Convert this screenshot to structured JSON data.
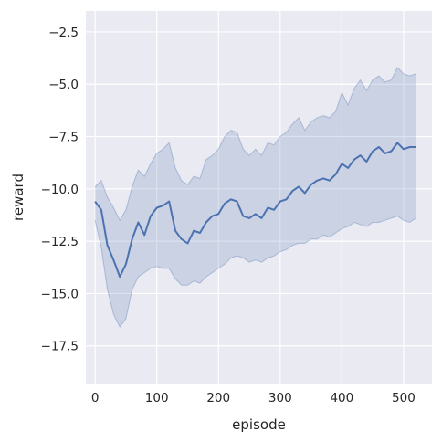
{
  "chart_data": {
    "type": "line",
    "title": "",
    "xlabel": "episode",
    "ylabel": "reward",
    "xlim": [
      -15,
      546
    ],
    "ylim": [
      -19.3,
      -1.5
    ],
    "grid": true,
    "legend": "none",
    "colors": {
      "background": "#eaeaf2",
      "line": "#4c72b0",
      "band": "#4c72b0",
      "grid": "#ffffff",
      "text": "#262626"
    },
    "x_ticks": [
      0,
      100,
      200,
      300,
      400,
      500
    ],
    "x_tick_labels": [
      "0",
      "100",
      "200",
      "300",
      "400",
      "500"
    ],
    "y_ticks": [
      -17.5,
      -15.0,
      -12.5,
      -10.0,
      -7.5,
      -5.0,
      -2.5
    ],
    "y_tick_labels": [
      "−17.5",
      "−15.0",
      "−12.5",
      "−10.0",
      "−7.5",
      "−5.0",
      "−2.5"
    ],
    "series": [
      {
        "x": [
          0,
          10,
          20,
          30,
          40,
          50,
          60,
          70,
          80,
          90,
          100,
          110,
          120,
          130,
          140,
          150,
          160,
          170,
          180,
          190,
          200,
          210,
          220,
          230,
          240,
          250,
          260,
          270,
          280,
          290,
          300,
          310,
          320,
          330,
          340,
          350,
          360,
          370,
          380,
          390,
          400,
          410,
          420,
          430,
          440,
          450,
          460,
          470,
          480,
          490,
          500,
          510,
          520
        ],
        "y": [
          -10.6,
          -11.0,
          -12.7,
          -13.4,
          -14.2,
          -13.6,
          -12.4,
          -11.6,
          -12.2,
          -11.3,
          -10.9,
          -10.8,
          -10.6,
          -12.0,
          -12.4,
          -12.6,
          -12.0,
          -12.1,
          -11.6,
          -11.3,
          -11.2,
          -10.7,
          -10.5,
          -10.6,
          -11.3,
          -11.4,
          -11.2,
          -11.4,
          -10.9,
          -11.0,
          -10.6,
          -10.5,
          -10.1,
          -9.9,
          -10.2,
          -9.8,
          -9.6,
          -9.5,
          -9.6,
          -9.3,
          -8.8,
          -9.0,
          -8.6,
          -8.4,
          -8.7,
          -8.2,
          -8.0,
          -8.3,
          -8.2,
          -7.8,
          -8.1,
          -8.0,
          -8.0
        ],
        "lower": [
          -11.5,
          -12.8,
          -14.8,
          -16.0,
          -16.6,
          -16.2,
          -14.8,
          -14.2,
          -14.0,
          -13.8,
          -13.7,
          -13.8,
          -13.8,
          -14.3,
          -14.6,
          -14.6,
          -14.4,
          -14.5,
          -14.2,
          -14.0,
          -13.8,
          -13.6,
          -13.3,
          -13.2,
          -13.3,
          -13.5,
          -13.4,
          -13.5,
          -13.3,
          -13.2,
          -13.0,
          -12.9,
          -12.7,
          -12.6,
          -12.6,
          -12.4,
          -12.4,
          -12.2,
          -12.3,
          -12.1,
          -11.9,
          -11.8,
          -11.6,
          -11.7,
          -11.8,
          -11.6,
          -11.6,
          -11.5,
          -11.4,
          -11.3,
          -11.5,
          -11.6,
          -11.4
        ],
        "upper": [
          -9.9,
          -9.6,
          -10.4,
          -10.9,
          -11.5,
          -11.0,
          -9.9,
          -9.1,
          -9.4,
          -8.8,
          -8.3,
          -8.1,
          -7.8,
          -9.0,
          -9.6,
          -9.8,
          -9.4,
          -9.5,
          -8.6,
          -8.4,
          -8.1,
          -7.5,
          -7.2,
          -7.3,
          -8.1,
          -8.4,
          -8.1,
          -8.4,
          -7.8,
          -7.9,
          -7.5,
          -7.3,
          -6.9,
          -6.6,
          -7.2,
          -6.8,
          -6.6,
          -6.5,
          -6.6,
          -6.3,
          -5.4,
          -6.0,
          -5.2,
          -4.8,
          -5.3,
          -4.8,
          -4.6,
          -4.9,
          -4.8,
          -4.2,
          -4.5,
          -4.6,
          -4.5
        ]
      }
    ]
  }
}
